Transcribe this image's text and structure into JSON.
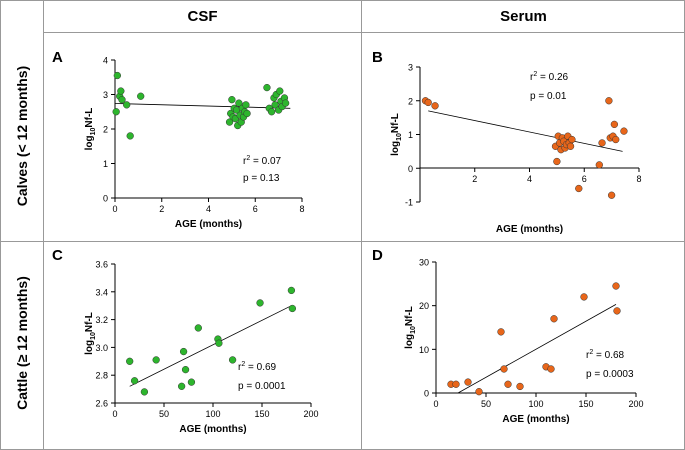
{
  "columns": [
    "CSF",
    "Serum"
  ],
  "rows": [
    "Calves (< 12 months)",
    "Cattle (≥ 12 months)"
  ],
  "colors": {
    "green": "#2db52d",
    "orange": "#e8661a",
    "border": "#999999"
  },
  "chart_data": [
    {
      "id": "A",
      "panel_label": "A",
      "type": "scatter",
      "xlabel": "AGE (months)",
      "ylabel_main": "log",
      "ylabel_sub": "10",
      "ylabel_rest": "Nf-L",
      "xlim": [
        0,
        8
      ],
      "ylim": [
        0,
        4
      ],
      "xticks": [
        0,
        2,
        4,
        6,
        8
      ],
      "yticks": [
        0,
        1,
        2,
        3,
        4
      ],
      "color": "green",
      "stats": {
        "r2_label": "r",
        "r2_sup": "2",
        "r2_value": " = 0.07",
        "p": "p = 0.13"
      },
      "fit": [
        [
          0,
          2.74
        ],
        [
          7.5,
          2.6
        ]
      ],
      "points": [
        [
          0.05,
          2.5
        ],
        [
          0.1,
          3.55
        ],
        [
          0.2,
          2.95
        ],
        [
          0.25,
          3.1
        ],
        [
          0.3,
          2.85
        ],
        [
          0.5,
          2.7
        ],
        [
          0.65,
          1.8
        ],
        [
          1.1,
          2.95
        ],
        [
          4.9,
          2.2
        ],
        [
          4.95,
          2.45
        ],
        [
          5.0,
          2.85
        ],
        [
          5.05,
          2.35
        ],
        [
          5.1,
          2.6
        ],
        [
          5.15,
          2.3
        ],
        [
          5.2,
          2.55
        ],
        [
          5.25,
          2.1
        ],
        [
          5.3,
          2.75
        ],
        [
          5.35,
          2.4
        ],
        [
          5.4,
          2.2
        ],
        [
          5.45,
          2.6
        ],
        [
          5.5,
          2.35
        ],
        [
          5.55,
          2.5
        ],
        [
          5.6,
          2.7
        ],
        [
          5.65,
          2.45
        ],
        [
          6.5,
          3.2
        ],
        [
          6.6,
          2.6
        ],
        [
          6.7,
          2.5
        ],
        [
          6.8,
          2.9
        ],
        [
          6.85,
          2.7
        ],
        [
          6.9,
          3.0
        ],
        [
          7.0,
          2.55
        ],
        [
          7.05,
          3.1
        ],
        [
          7.1,
          2.8
        ],
        [
          7.15,
          2.65
        ],
        [
          7.25,
          2.9
        ],
        [
          7.3,
          2.75
        ]
      ]
    },
    {
      "id": "B",
      "panel_label": "B",
      "type": "scatter",
      "xlabel": "AGE (months)",
      "ylabel_main": "log",
      "ylabel_sub": "10",
      "ylabel_rest": "Nf-L",
      "xlim": [
        0,
        8
      ],
      "ylim": [
        -1,
        3
      ],
      "xticks": [
        2,
        4,
        6,
        8
      ],
      "yticks": [
        -1,
        0,
        1,
        2,
        3
      ],
      "color": "orange",
      "stats": {
        "r2_label": "r",
        "r2_sup": "2",
        "r2_value": " = 0.26",
        "p": "p = 0.01"
      },
      "fit": [
        [
          0.3,
          1.7
        ],
        [
          7.4,
          0.5
        ]
      ],
      "points": [
        [
          0.2,
          2.0
        ],
        [
          0.3,
          1.95
        ],
        [
          0.55,
          1.85
        ],
        [
          4.95,
          0.65
        ],
        [
          5.0,
          0.2
        ],
        [
          5.05,
          0.95
        ],
        [
          5.1,
          0.75
        ],
        [
          5.15,
          0.55
        ],
        [
          5.2,
          0.9
        ],
        [
          5.25,
          0.8
        ],
        [
          5.3,
          0.6
        ],
        [
          5.35,
          0.7
        ],
        [
          5.4,
          0.95
        ],
        [
          5.45,
          0.75
        ],
        [
          5.5,
          0.65
        ],
        [
          5.55,
          0.85
        ],
        [
          5.8,
          -0.6
        ],
        [
          6.55,
          0.1
        ],
        [
          6.65,
          0.75
        ],
        [
          6.9,
          2.0
        ],
        [
          6.95,
          0.9
        ],
        [
          7.0,
          -0.8
        ],
        [
          7.05,
          0.95
        ],
        [
          7.1,
          1.3
        ],
        [
          7.15,
          0.85
        ],
        [
          7.45,
          1.1
        ]
      ]
    },
    {
      "id": "C",
      "panel_label": "C",
      "type": "scatter",
      "xlabel": "AGE (months)",
      "ylabel_main": "log",
      "ylabel_sub": "10",
      "ylabel_rest": "Nf-L",
      "xlim": [
        0,
        200
      ],
      "ylim": [
        2.6,
        3.6
      ],
      "xticks": [
        0,
        50,
        100,
        150,
        200
      ],
      "yticks": [
        "2.6",
        "2.8",
        "3.0",
        "3.2",
        "3.4",
        "3.6"
      ],
      "color": "green",
      "stats": {
        "r2_label": "r",
        "r2_sup": "2",
        "r2_value": " = 0.69",
        "p": "p = 0.0001"
      },
      "fit": [
        [
          15,
          2.72
        ],
        [
          180,
          3.3
        ]
      ],
      "points": [
        [
          15,
          2.9
        ],
        [
          20,
          2.76
        ],
        [
          30,
          2.68
        ],
        [
          42,
          2.91
        ],
        [
          68,
          2.72
        ],
        [
          70,
          2.97
        ],
        [
          72,
          2.84
        ],
        [
          78,
          2.75
        ],
        [
          85,
          3.14
        ],
        [
          105,
          3.06
        ],
        [
          106,
          3.03
        ],
        [
          120,
          2.91
        ],
        [
          148,
          3.32
        ],
        [
          180,
          3.41
        ],
        [
          181,
          3.28
        ]
      ]
    },
    {
      "id": "D",
      "panel_label": "D",
      "type": "scatter",
      "xlabel": "AGE (months)",
      "ylabel_main": "log",
      "ylabel_sub": "10",
      "ylabel_rest": "Nf-L",
      "xlim": [
        0,
        200
      ],
      "ylim": [
        0,
        30
      ],
      "xticks": [
        0,
        50,
        100,
        150,
        200
      ],
      "yticks": [
        0,
        10,
        20,
        30
      ],
      "color": "orange",
      "stats": {
        "r2_label": "r",
        "r2_sup": "2",
        "r2_value": " = 0.68",
        "p": "p = 0.0003"
      },
      "fit": [
        [
          22,
          0
        ],
        [
          180,
          20.3
        ]
      ],
      "points": [
        [
          15,
          2
        ],
        [
          20,
          2
        ],
        [
          32,
          2.5
        ],
        [
          43,
          0.3
        ],
        [
          65,
          14
        ],
        [
          68,
          5.5
        ],
        [
          72,
          2
        ],
        [
          84,
          1.5
        ],
        [
          110,
          6
        ],
        [
          115,
          5.5
        ],
        [
          118,
          17
        ],
        [
          148,
          22
        ],
        [
          180,
          24.5
        ],
        [
          181,
          18.8
        ]
      ]
    }
  ]
}
